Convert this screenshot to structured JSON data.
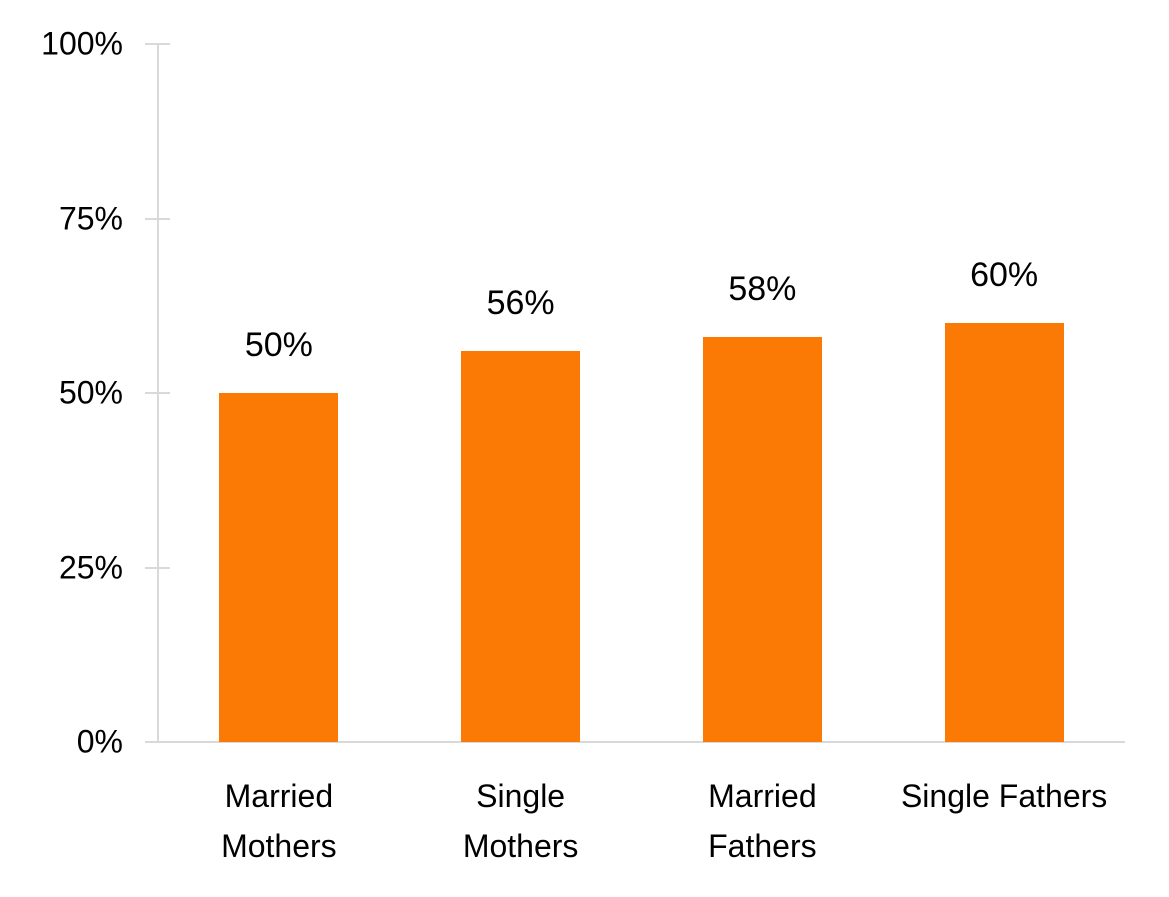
{
  "chart_data": {
    "type": "bar",
    "title": "",
    "xlabel": "",
    "ylabel": "",
    "categories": [
      "Married Mothers",
      "Single Mothers",
      "Married Fathers",
      "Single Fathers"
    ],
    "category_lines": [
      [
        "Married",
        "Mothers"
      ],
      [
        "Single",
        "Mothers"
      ],
      [
        "Married",
        "Fathers"
      ],
      [
        "Single Fathers"
      ]
    ],
    "values": [
      50,
      56,
      58,
      60
    ],
    "value_labels": [
      "50%",
      "56%",
      "58%",
      "60%"
    ],
    "y_ticks": [
      0,
      25,
      50,
      75,
      100
    ],
    "y_tick_labels": [
      "0%",
      "25%",
      "50%",
      "75%",
      "100%"
    ],
    "ylim": [
      0,
      100
    ],
    "grid": false,
    "legend": false,
    "bar_color": "#FB7A05",
    "axis_color": "#D9D9D9",
    "text_color": "#000000"
  }
}
